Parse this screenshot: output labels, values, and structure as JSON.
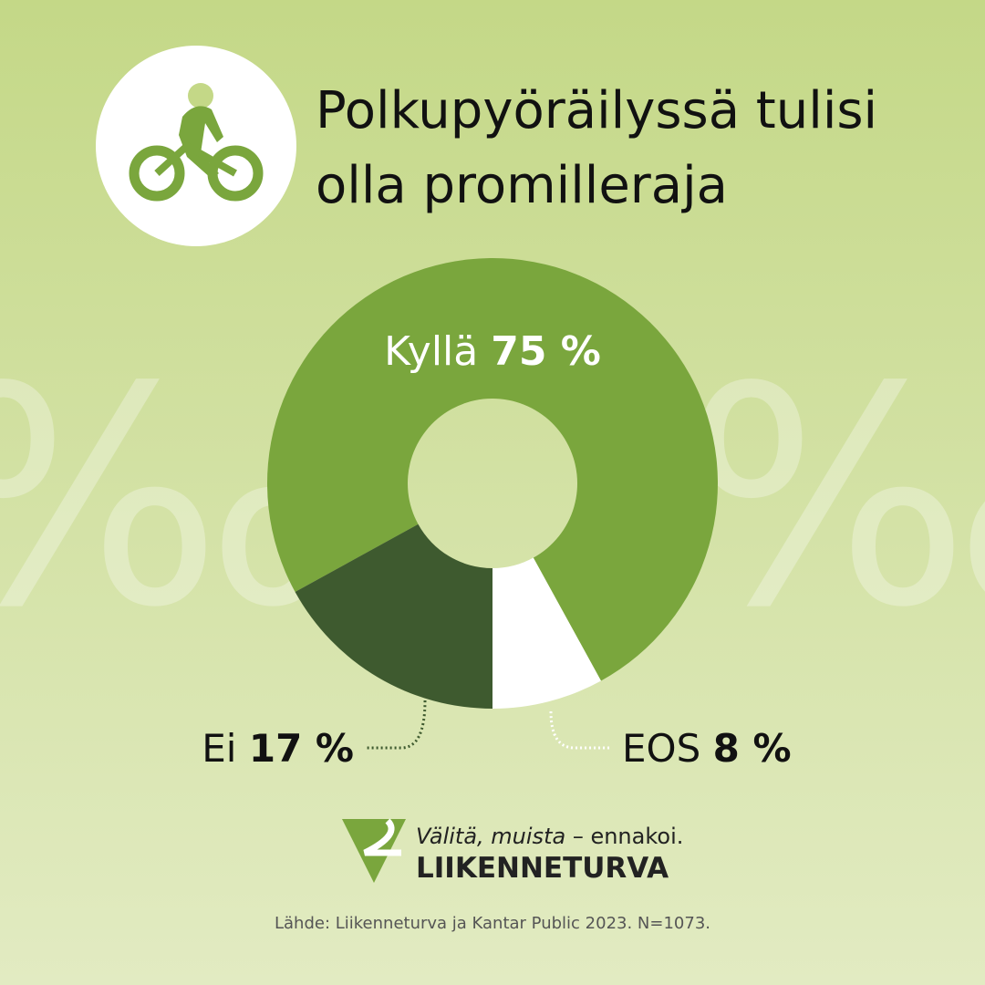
{
  "chart_data": {
    "type": "donut",
    "title_lines": [
      "Polkupyöräilyssä tulisi",
      "olla promilleraja"
    ],
    "categories": [
      "Kyllä",
      "Ei",
      "EOS"
    ],
    "values": [
      75,
      17,
      8
    ],
    "value_labels": [
      "75 %",
      "17 %",
      "8 %"
    ],
    "colors": [
      "#7aa63d",
      "#3e5a2f",
      "#ffffff"
    ],
    "background_symbol": "‰",
    "logo": {
      "tagline_italic": "Välitä, muista",
      "tagline_rest": " – ennakoi.",
      "name": "LIIKENNETURVA"
    },
    "source": "Lähde: Liikenneturva ja Kantar Public 2023. N=1073."
  }
}
